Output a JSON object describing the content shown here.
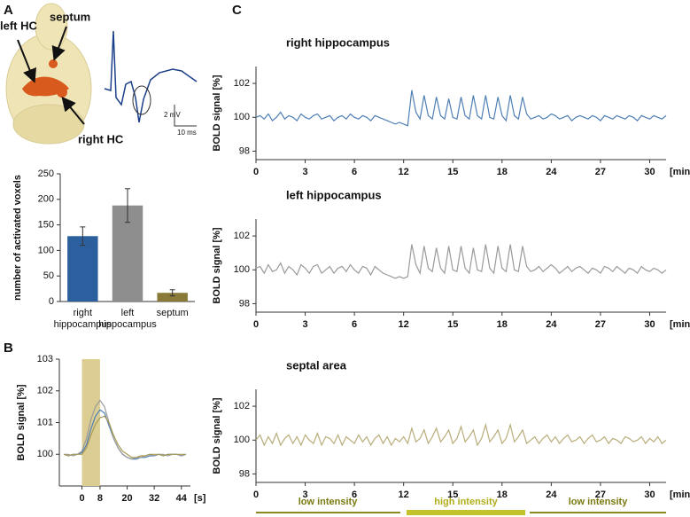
{
  "figure": {
    "panel_labels": [
      "A",
      "B",
      "C"
    ],
    "brain_labels": [
      "left HC",
      "septum",
      "right HC"
    ],
    "scale_bar": [
      "2 mV",
      "10 ms"
    ],
    "intensity_labels": [
      "low intensity",
      "high intensity",
      "low intensity"
    ]
  },
  "chart_data": [
    {
      "type": "bar",
      "y_label": "number of activated voxels",
      "categories": [
        "right hippocampus",
        "left hippocampus",
        "septum"
      ],
      "values": [
        128,
        188,
        17
      ],
      "errors": [
        18,
        33,
        6
      ],
      "colors": [
        "#2b5f9e",
        "#8e8e8e",
        "#8a7a3a"
      ],
      "ylim": [
        0,
        250
      ],
      "yticks": [
        0,
        50,
        100,
        150,
        200,
        250
      ]
    },
    {
      "type": "line",
      "y_label": "BOLD signal [%]",
      "x_unit": "[s]",
      "shaded_x": [
        0,
        8
      ],
      "shade_color": "#dccd92",
      "x": [
        -8,
        -6,
        -4,
        -2,
        0,
        2,
        4,
        6,
        8,
        10,
        12,
        14,
        16,
        18,
        20,
        22,
        24,
        26,
        28,
        30,
        32,
        34,
        36,
        38,
        40,
        42,
        44,
        46
      ],
      "series": [
        {
          "color": "#4f7fb5",
          "values": [
            100.0,
            99.95,
            100.0,
            100.0,
            100.05,
            100.3,
            100.8,
            101.2,
            101.4,
            101.3,
            100.9,
            100.5,
            100.2,
            100.0,
            99.9,
            99.85,
            99.85,
            99.9,
            99.9,
            99.95,
            99.95,
            100.0,
            99.95,
            100.0,
            100.0,
            100.0,
            99.95,
            100.0
          ]
        },
        {
          "color": "#9a9a9a",
          "values": [
            100.0,
            100.0,
            99.95,
            100.0,
            100.1,
            100.5,
            101.1,
            101.5,
            101.7,
            101.5,
            101.0,
            100.5,
            100.2,
            100.0,
            99.9,
            99.85,
            99.9,
            99.9,
            99.95,
            100.0,
            99.95,
            100.0,
            100.0,
            99.95,
            100.0,
            100.0,
            99.95,
            100.0
          ]
        },
        {
          "color": "#a89a55",
          "values": [
            100.0,
            99.95,
            100.0,
            100.0,
            100.0,
            100.2,
            100.6,
            100.95,
            101.15,
            101.2,
            101.0,
            100.6,
            100.3,
            100.1,
            100.0,
            99.9,
            99.9,
            99.95,
            99.95,
            100.0,
            100.0,
            100.0,
            99.95,
            100.0,
            100.0,
            100.0,
            100.0,
            100.0
          ]
        }
      ],
      "xlim": [
        -10,
        48
      ],
      "xticks": [
        0,
        8,
        20,
        32,
        44
      ],
      "ylim": [
        99,
        103
      ],
      "yticks": [
        100,
        101,
        102,
        103
      ]
    },
    {
      "type": "line",
      "title": "right hippocampus",
      "y_label": "BOLD signal [%]",
      "x_unit": "[min]",
      "x": [
        0,
        0.25,
        0.5,
        0.75,
        1,
        1.25,
        1.5,
        1.75,
        2,
        2.25,
        2.5,
        2.75,
        3,
        3.25,
        3.5,
        3.75,
        4,
        4.25,
        4.5,
        4.75,
        5,
        5.25,
        5.5,
        5.75,
        6,
        6.25,
        6.5,
        6.75,
        7,
        7.25,
        7.5,
        7.75,
        8,
        8.25,
        8.5,
        8.75,
        9,
        9.25,
        9.5,
        9.75,
        10,
        10.25,
        10.5,
        10.75,
        11,
        11.25,
        11.5,
        11.75,
        12,
        12.25,
        12.5,
        12.75,
        13,
        13.25,
        13.5,
        13.75,
        14,
        14.25,
        14.5,
        14.75,
        15,
        15.25,
        15.5,
        15.75,
        16,
        16.25,
        16.5,
        16.75,
        17,
        17.25,
        17.5,
        17.75,
        18,
        18.25,
        18.5,
        18.75,
        19,
        19.25,
        19.5,
        19.75,
        20,
        20.25,
        20.5,
        20.75,
        21,
        21.25,
        21.5,
        21.75,
        22,
        22.25,
        22.5,
        22.75,
        23,
        23.25,
        23.5,
        23.75,
        24,
        24.25,
        24.5,
        24.75,
        25
      ],
      "series": [
        {
          "color": "#4f7fb5",
          "values": [
            100.0,
            100.1,
            99.9,
            100.2,
            99.8,
            100.0,
            100.3,
            99.9,
            100.1,
            100.0,
            99.8,
            100.2,
            100.0,
            99.9,
            100.1,
            100.2,
            99.9,
            100.0,
            100.1,
            99.8,
            100.0,
            100.1,
            99.9,
            100.2,
            100.0,
            99.9,
            100.1,
            100.0,
            99.8,
            100.1,
            100.0,
            99.9,
            99.8,
            99.7,
            99.6,
            99.7,
            99.6,
            99.5,
            101.6,
            100.3,
            99.9,
            101.3,
            100.1,
            99.9,
            101.2,
            100.1,
            99.9,
            101.1,
            100.0,
            99.9,
            101.2,
            100.1,
            99.9,
            101.3,
            100.1,
            99.9,
            101.3,
            100.0,
            99.9,
            101.2,
            100.1,
            99.8,
            101.3,
            100.1,
            99.9,
            101.2,
            100.2,
            99.9,
            100.0,
            100.1,
            99.9,
            100.0,
            100.2,
            100.1,
            99.9,
            100.0,
            100.1,
            99.8,
            100.0,
            100.1,
            100.0,
            99.9,
            100.1,
            100.0,
            99.8,
            100.1,
            100.0,
            99.9,
            100.1,
            100.0,
            99.9,
            100.1,
            100.0,
            99.8,
            100.1,
            100.0,
            99.9,
            100.1,
            100.0,
            99.9,
            100.1
          ]
        }
      ],
      "xlim": [
        0,
        25
      ],
      "xticks": [
        {
          "value": 0,
          "label": "0"
        },
        {
          "value": 3,
          "label": "3"
        },
        {
          "value": 6,
          "label": "6"
        },
        {
          "value": 9,
          "label": "12"
        },
        {
          "value": 12,
          "label": "15"
        },
        {
          "value": 15,
          "label": "18"
        },
        {
          "value": 18,
          "label": "24"
        },
        {
          "value": 21,
          "label": "27"
        },
        {
          "value": 24,
          "label": "30"
        }
      ],
      "ylim": [
        97.5,
        103
      ],
      "yticks": [
        98,
        100,
        102
      ]
    },
    {
      "type": "line",
      "title": "left hippocampus",
      "y_label": "BOLD signal [%]",
      "x_unit": "[min]",
      "x": [
        0,
        0.25,
        0.5,
        0.75,
        1,
        1.25,
        1.5,
        1.75,
        2,
        2.25,
        2.5,
        2.75,
        3,
        3.25,
        3.5,
        3.75,
        4,
        4.25,
        4.5,
        4.75,
        5,
        5.25,
        5.5,
        5.75,
        6,
        6.25,
        6.5,
        6.75,
        7,
        7.25,
        7.5,
        7.75,
        8,
        8.25,
        8.5,
        8.75,
        9,
        9.25,
        9.5,
        9.75,
        10,
        10.25,
        10.5,
        10.75,
        11,
        11.25,
        11.5,
        11.75,
        12,
        12.25,
        12.5,
        12.75,
        13,
        13.25,
        13.5,
        13.75,
        14,
        14.25,
        14.5,
        14.75,
        15,
        15.25,
        15.5,
        15.75,
        16,
        16.25,
        16.5,
        16.75,
        17,
        17.25,
        17.5,
        17.75,
        18,
        18.25,
        18.5,
        18.75,
        19,
        19.25,
        19.5,
        19.75,
        20,
        20.25,
        20.5,
        20.75,
        21,
        21.25,
        21.5,
        21.75,
        22,
        22.25,
        22.5,
        22.75,
        23,
        23.25,
        23.5,
        23.75,
        24,
        24.25,
        24.5,
        24.75,
        25
      ],
      "series": [
        {
          "color": "#9a9a9a",
          "values": [
            100.1,
            100.2,
            99.8,
            100.3,
            99.9,
            100.0,
            100.4,
            99.8,
            100.2,
            100.0,
            99.7,
            100.3,
            100.1,
            99.8,
            100.2,
            100.3,
            99.8,
            100.0,
            100.2,
            99.8,
            100.1,
            100.2,
            99.9,
            100.3,
            100.0,
            99.8,
            100.2,
            100.1,
            99.7,
            100.2,
            100.0,
            99.8,
            99.7,
            99.6,
            99.5,
            99.6,
            99.5,
            99.6,
            101.5,
            100.3,
            99.8,
            101.4,
            100.1,
            99.9,
            101.3,
            100.1,
            99.8,
            101.4,
            100.0,
            99.9,
            101.4,
            100.1,
            99.8,
            101.3,
            100.0,
            99.9,
            101.5,
            100.1,
            99.8,
            101.4,
            100.1,
            99.9,
            101.5,
            100.0,
            99.9,
            101.4,
            100.2,
            99.9,
            100.0,
            100.2,
            99.9,
            100.1,
            100.3,
            100.1,
            99.8,
            100.0,
            100.2,
            99.9,
            100.1,
            100.2,
            100.0,
            99.8,
            100.1,
            100.0,
            99.8,
            100.2,
            100.1,
            99.9,
            100.2,
            100.0,
            99.8,
            100.1,
            100.0,
            99.8,
            100.2,
            100.0,
            99.9,
            100.1,
            100.0,
            99.8,
            100.0
          ]
        }
      ],
      "xlim": [
        0,
        25
      ],
      "xticks": [
        {
          "value": 0,
          "label": "0"
        },
        {
          "value": 3,
          "label": "3"
        },
        {
          "value": 6,
          "label": "6"
        },
        {
          "value": 9,
          "label": "12"
        },
        {
          "value": 12,
          "label": "15"
        },
        {
          "value": 15,
          "label": "18"
        },
        {
          "value": 18,
          "label": "24"
        },
        {
          "value": 21,
          "label": "27"
        },
        {
          "value": 24,
          "label": "30"
        }
      ],
      "ylim": [
        97.5,
        103
      ],
      "yticks": [
        98,
        100,
        102
      ]
    },
    {
      "type": "line",
      "title": "septal area",
      "y_label": "BOLD signal [%]",
      "x_unit": "[min]",
      "x": [
        0,
        0.25,
        0.5,
        0.75,
        1,
        1.25,
        1.5,
        1.75,
        2,
        2.25,
        2.5,
        2.75,
        3,
        3.25,
        3.5,
        3.75,
        4,
        4.25,
        4.5,
        4.75,
        5,
        5.25,
        5.5,
        5.75,
        6,
        6.25,
        6.5,
        6.75,
        7,
        7.25,
        7.5,
        7.75,
        8,
        8.25,
        8.5,
        8.75,
        9,
        9.25,
        9.5,
        9.75,
        10,
        10.25,
        10.5,
        10.75,
        11,
        11.25,
        11.5,
        11.75,
        12,
        12.25,
        12.5,
        12.75,
        13,
        13.25,
        13.5,
        13.75,
        14,
        14.25,
        14.5,
        14.75,
        15,
        15.25,
        15.5,
        15.75,
        16,
        16.25,
        16.5,
        16.75,
        17,
        17.25,
        17.5,
        17.75,
        18,
        18.25,
        18.5,
        18.75,
        19,
        19.25,
        19.5,
        19.75,
        20,
        20.25,
        20.5,
        20.75,
        21,
        21.25,
        21.5,
        21.75,
        22,
        22.25,
        22.5,
        22.75,
        23,
        23.25,
        23.5,
        23.75,
        24,
        24.25,
        24.5,
        24.75,
        25
      ],
      "series": [
        {
          "color": "#b8ad7a",
          "values": [
            100.0,
            100.3,
            99.7,
            100.2,
            99.8,
            100.4,
            99.7,
            100.1,
            100.3,
            99.8,
            100.2,
            99.7,
            100.3,
            100.0,
            99.8,
            100.4,
            99.7,
            100.2,
            100.1,
            99.8,
            100.3,
            99.7,
            100.2,
            100.0,
            99.8,
            100.3,
            99.9,
            100.2,
            99.7,
            100.1,
            100.3,
            99.8,
            100.2,
            99.7,
            100.1,
            99.9,
            100.2,
            99.8,
            100.7,
            99.9,
            100.1,
            100.6,
            99.8,
            100.2,
            100.7,
            99.9,
            100.2,
            100.6,
            99.8,
            100.1,
            100.8,
            99.9,
            100.2,
            100.6,
            99.7,
            100.1,
            100.9,
            99.9,
            100.2,
            100.6,
            99.8,
            100.1,
            100.9,
            99.9,
            100.2,
            100.6,
            99.8,
            100.0,
            100.2,
            99.8,
            100.1,
            100.3,
            99.9,
            100.2,
            99.8,
            100.1,
            100.3,
            99.9,
            100.0,
            100.2,
            99.8,
            100.1,
            100.3,
            99.9,
            100.0,
            100.2,
            99.8,
            100.1,
            100.0,
            99.8,
            100.2,
            100.1,
            99.9,
            100.0,
            100.2,
            99.8,
            100.1,
            99.9,
            100.2,
            99.8,
            100.0
          ]
        }
      ],
      "xlim": [
        0,
        25
      ],
      "xticks": [
        {
          "value": 0,
          "label": "0"
        },
        {
          "value": 3,
          "label": "3"
        },
        {
          "value": 6,
          "label": "6"
        },
        {
          "value": 9,
          "label": "12"
        },
        {
          "value": 12,
          "label": "15"
        },
        {
          "value": 15,
          "label": "18"
        },
        {
          "value": 18,
          "label": "24"
        },
        {
          "value": 21,
          "label": "27"
        },
        {
          "value": 24,
          "label": "30"
        }
      ],
      "ylim": [
        97.5,
        103
      ],
      "yticks": [
        98,
        100,
        102
      ]
    }
  ]
}
